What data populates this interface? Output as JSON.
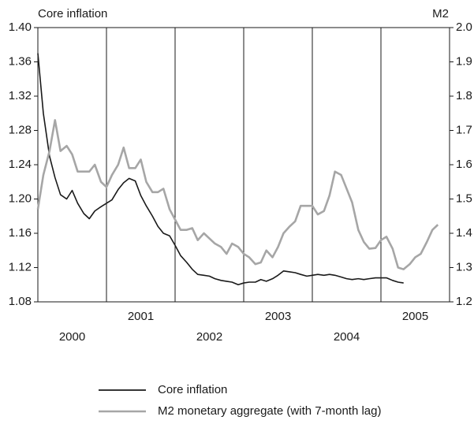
{
  "chart_data": {
    "type": "line",
    "y_label": "Core inflation",
    "y2_label": "M2",
    "xlim": [
      2000,
      2006
    ],
    "xticks": [
      {
        "value": 2000,
        "label": "2000"
      },
      {
        "value": 2001,
        "label": "2001"
      },
      {
        "value": 2002,
        "label": "2002"
      },
      {
        "value": 2003,
        "label": "2003"
      },
      {
        "value": 2004,
        "label": "2004"
      },
      {
        "value": 2005,
        "label": "2005"
      }
    ],
    "ylim": [
      1.08,
      1.4
    ],
    "yticks": [
      1.08,
      1.12,
      1.16,
      {
        "value": 1.2,
        "label": "1.20"
      },
      1.24,
      1.28,
      1.32,
      1.36,
      {
        "value": 1.4,
        "label": "1.40"
      }
    ],
    "y2lim": [
      1.2,
      2.0
    ],
    "y2ticks": [
      1.2,
      1.3,
      1.4,
      1.5,
      1.6,
      1.7,
      1.8,
      1.9,
      {
        "value": 2.0,
        "label": "2.0"
      }
    ],
    "x": [
      2000,
      2000.08,
      2000.17,
      2000.25,
      2000.33,
      2000.42,
      2000.5,
      2000.58,
      2000.67,
      2000.75,
      2000.83,
      2000.92,
      2001,
      2001.08,
      2001.17,
      2001.25,
      2001.33,
      2001.42,
      2001.5,
      2001.58,
      2001.67,
      2001.75,
      2001.83,
      2001.92,
      2002,
      2002.08,
      2002.17,
      2002.25,
      2002.33,
      2002.42,
      2002.5,
      2002.58,
      2002.67,
      2002.75,
      2002.83,
      2002.92,
      2003,
      2003.08,
      2003.17,
      2003.25,
      2003.33,
      2003.42,
      2003.5,
      2003.58,
      2003.67,
      2003.75,
      2003.83,
      2003.92,
      2004,
      2004.08,
      2004.17,
      2004.25,
      2004.33,
      2004.42,
      2004.5,
      2004.58,
      2004.67,
      2004.75,
      2004.83,
      2004.92,
      2005,
      2005.08,
      2005.17,
      2005.25,
      2005.33,
      2005.42,
      2005.5,
      2005.58,
      2005.67,
      2005.75,
      2005.83
    ],
    "series": [
      {
        "name": "Core inflation",
        "color": "#1a1a1a",
        "axis": "y",
        "values": [
          1.37,
          1.3,
          1.25,
          1.225,
          1.205,
          1.2,
          1.21,
          1.195,
          1.183,
          1.177,
          1.186,
          1.191,
          1.195,
          1.199,
          1.211,
          1.219,
          1.224,
          1.221,
          1.204,
          1.192,
          1.18,
          1.168,
          1.16,
          1.157,
          1.146,
          1.134,
          1.126,
          1.118,
          1.112,
          1.111,
          1.11,
          1.107,
          1.105,
          1.104,
          1.103,
          1.1,
          1.102,
          1.103,
          1.103,
          1.106,
          1.104,
          1.107,
          1.111,
          1.116,
          1.115,
          1.114,
          1.112,
          1.11,
          1.111,
          1.112,
          1.111,
          1.112,
          1.111,
          1.109,
          1.107,
          1.106,
          1.107,
          1.106,
          1.107,
          1.108,
          1.108,
          1.108,
          1.105,
          1.103,
          1.102,
          null,
          null,
          null,
          null,
          null,
          null
        ]
      },
      {
        "name": "M2 monetary aggregate (with 7-month lag)",
        "color": "#a6a6a6",
        "axis": "y2",
        "values": [
          1.47,
          1.57,
          1.64,
          1.73,
          1.64,
          1.655,
          1.63,
          1.58,
          1.58,
          1.58,
          1.6,
          1.55,
          1.535,
          1.57,
          1.6,
          1.65,
          1.59,
          1.59,
          1.615,
          1.55,
          1.52,
          1.52,
          1.53,
          1.47,
          1.44,
          1.41,
          1.41,
          1.415,
          1.38,
          1.4,
          1.385,
          1.37,
          1.36,
          1.34,
          1.37,
          1.36,
          1.34,
          1.33,
          1.31,
          1.315,
          1.35,
          1.33,
          1.36,
          1.4,
          1.42,
          1.435,
          1.48,
          1.48,
          1.48,
          1.455,
          1.465,
          1.51,
          1.58,
          1.57,
          1.53,
          1.49,
          1.41,
          1.375,
          1.355,
          1.357,
          1.38,
          1.39,
          1.355,
          1.3,
          1.295,
          1.31,
          1.33,
          1.34,
          1.375,
          1.41,
          1.425
        ]
      }
    ]
  }
}
